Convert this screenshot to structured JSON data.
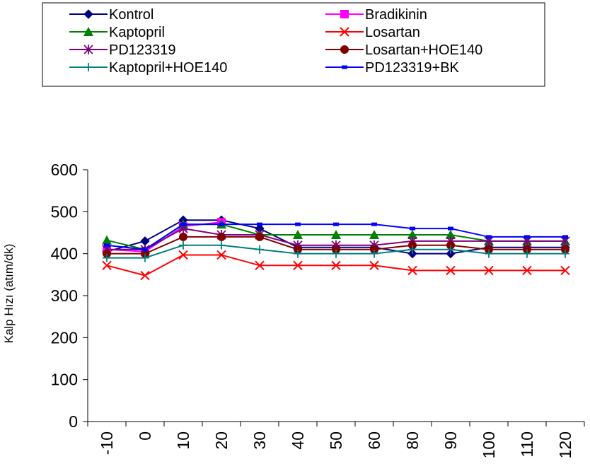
{
  "chart_data": {
    "type": "line",
    "title": "",
    "xlabel": "",
    "ylabel": "Kalp Hızı (atım/dk)",
    "ylim": [
      0,
      600
    ],
    "yticks": [
      "0",
      "100",
      "200",
      "300",
      "400",
      "500",
      "600"
    ],
    "categories": [
      "-10",
      "0",
      "10",
      "20",
      "30",
      "40",
      "50",
      "60",
      "80",
      "90",
      "100",
      "110",
      "120"
    ],
    "grid": false,
    "legend_position": "top",
    "series": [
      {
        "name": "Kontrol",
        "color": "#000080",
        "marker": "diamond",
        "values": [
          405,
          430,
          480,
          480,
          460,
          415,
          415,
          415,
          400,
          400,
          415,
          415,
          415
        ]
      },
      {
        "name": "Bradikinin",
        "color": "#ff00ff",
        "marker": "square",
        "values": [
          410,
          405,
          465,
          475,
          null,
          null,
          null,
          null,
          null,
          null,
          null,
          null,
          null
        ]
      },
      {
        "name": "Kaptopril",
        "color": "#008000",
        "marker": "triangle",
        "values": [
          432,
          410,
          470,
          470,
          445,
          445,
          445,
          445,
          445,
          445,
          430,
          430,
          430
        ]
      },
      {
        "name": "Losartan",
        "color": "#ff0000",
        "marker": "x",
        "values": [
          372,
          348,
          397,
          397,
          372,
          372,
          372,
          372,
          360,
          360,
          360,
          360,
          360
        ]
      },
      {
        "name": "PD123319",
        "color": "#800080",
        "marker": "asterisk",
        "values": [
          410,
          410,
          460,
          445,
          445,
          420,
          420,
          420,
          430,
          430,
          430,
          430,
          430
        ]
      },
      {
        "name": "Losartan+HOE140",
        "color": "#800000",
        "marker": "circle",
        "values": [
          400,
          400,
          440,
          440,
          440,
          410,
          410,
          410,
          420,
          420,
          410,
          410,
          410
        ]
      },
      {
        "name": "Kaptopril+HOE140",
        "color": "#008080",
        "marker": "plus",
        "values": [
          390,
          390,
          420,
          420,
          410,
          400,
          400,
          400,
          410,
          410,
          400,
          400,
          400
        ]
      },
      {
        "name": "PD123319+BK",
        "color": "#0000ff",
        "marker": "dash",
        "values": [
          420,
          410,
          470,
          470,
          470,
          470,
          470,
          470,
          460,
          460,
          440,
          440,
          440
        ]
      }
    ]
  }
}
